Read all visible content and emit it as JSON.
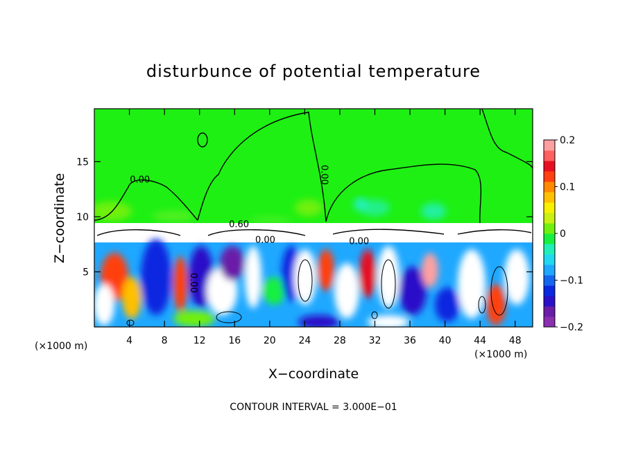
{
  "chart_data": {
    "type": "heatmap",
    "title": "disturbunce of potential temperature",
    "xlabel": "X−coordinate",
    "ylabel": "Z−coordinate",
    "x_unit": "(×1000 m)",
    "z_unit": "(×1000 m)",
    "xlim": [
      0,
      50
    ],
    "ylim": [
      0,
      19.8
    ],
    "x_ticks": [
      4,
      8,
      12,
      16,
      20,
      24,
      28,
      32,
      36,
      40,
      44,
      48
    ],
    "y_ticks": [
      5,
      10,
      15
    ],
    "colorbar": {
      "min": -0.2,
      "max": 0.2,
      "tick_values": [
        0.2,
        0.1,
        0,
        -0.1,
        -0.2
      ],
      "tick_labels": [
        "0.2",
        "0.1",
        "0",
        "−0.1",
        "−0.2"
      ],
      "colors": [
        "#8a2fb0",
        "#6a1ea8",
        "#2a10c8",
        "#0a28e0",
        "#1466f0",
        "#1ea8ff",
        "#20d8f0",
        "#20f0b8",
        "#18f040",
        "#70f010",
        "#c8f010",
        "#f8f000",
        "#ffc000",
        "#ff8a00",
        "#ff4010",
        "#e81020",
        "#ff6060",
        "#ffa0a0"
      ]
    },
    "contour_labels": [
      {
        "text": "0.00",
        "x": 5.2,
        "z": 13.1,
        "rotate": 0
      },
      {
        "text": "0.00",
        "x": 25.9,
        "z": 13.8,
        "rotate": 90
      },
      {
        "text": "0.60",
        "x": 16.5,
        "z": 9.05,
        "rotate": 0
      },
      {
        "text": "0.00",
        "x": 19.5,
        "z": 7.65,
        "rotate": 0
      },
      {
        "text": "0.00",
        "x": 30.2,
        "z": 7.5,
        "rotate": 0
      },
      {
        "text": "0.00",
        "x": 11.0,
        "z": 4.0,
        "rotate": 90
      }
    ],
    "contour_interval_text": "CONTOUR INTERVAL =  3.000E−01"
  }
}
